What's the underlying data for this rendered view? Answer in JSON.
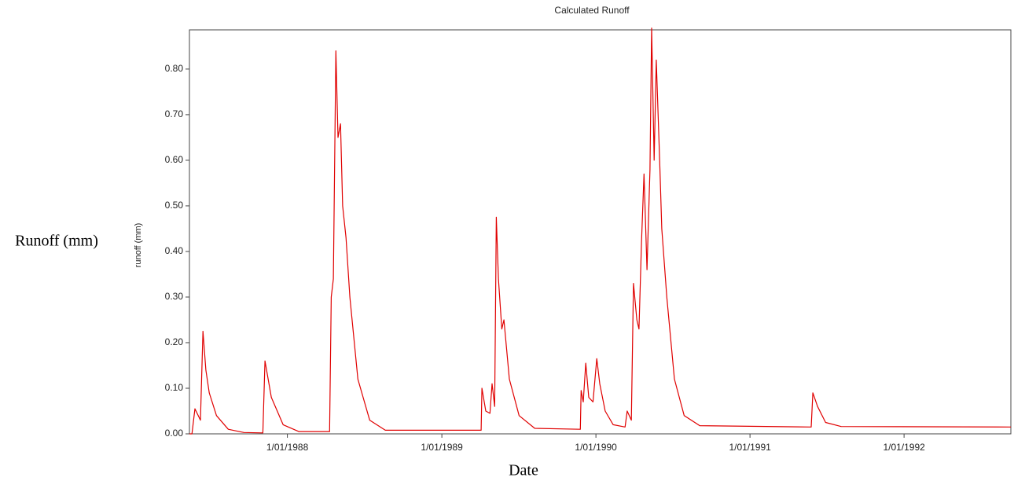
{
  "chart_data": {
    "type": "line",
    "title": "Calculated Runoff",
    "y_label": "runoff (mm)",
    "figure_y_label": "Runoff (mm)",
    "figure_x_label": "Date",
    "x": [
      "1987-05-14",
      "1987-05-20",
      "1987-05-27",
      "1987-06-09",
      "1987-06-15",
      "1987-06-22",
      "1987-06-30",
      "1987-07-17",
      "1987-08-14",
      "1987-09-20",
      "1987-11-04",
      "1987-11-09",
      "1987-11-24",
      "1987-12-22",
      "1988-01-28",
      "1988-04-10",
      "1988-04-14",
      "1988-04-19",
      "1988-04-25",
      "1988-04-30",
      "1988-05-06",
      "1988-05-11",
      "1988-05-19",
      "1988-05-28",
      "1988-06-16",
      "1988-07-14",
      "1988-08-20",
      "1989-04-04",
      "1989-04-06",
      "1989-04-15",
      "1989-04-25",
      "1989-04-30",
      "1989-05-06",
      "1989-05-10",
      "1989-05-15",
      "1989-05-23",
      "1989-05-28",
      "1989-06-10",
      "1989-07-03",
      "1989-08-09",
      "1989-11-25",
      "1989-11-27",
      "1989-12-02",
      "1989-12-08",
      "1989-12-15",
      "1989-12-25",
      "1990-01-03",
      "1990-01-10",
      "1990-01-23",
      "1990-02-11",
      "1990-03-11",
      "1990-03-16",
      "1990-03-26",
      "1990-03-31",
      "1990-04-08",
      "1990-04-13",
      "1990-04-19",
      "1990-04-25",
      "1990-05-02",
      "1990-05-09",
      "1990-05-13",
      "1990-05-19",
      "1990-05-24",
      "1990-06-01",
      "1990-06-06",
      "1990-06-18",
      "1990-07-06",
      "1990-07-29",
      "1990-09-04",
      "1991-05-26",
      "1991-05-30",
      "1991-06-10",
      "1991-06-29",
      "1991-08-05",
      "1992-09-10"
    ],
    "series": [
      {
        "name": "runoff",
        "color": "#e00000",
        "values": [
          0,
          0,
          0.055,
          0.03,
          0.225,
          0.14,
          0.09,
          0.04,
          0.01,
          0.003,
          0.002,
          0.16,
          0.08,
          0.02,
          0.005,
          0.005,
          0.3,
          0.34,
          0.84,
          0.65,
          0.68,
          0.5,
          0.43,
          0.3,
          0.12,
          0.03,
          0.008,
          0.008,
          0.1,
          0.05,
          0.045,
          0.11,
          0.06,
          0.475,
          0.34,
          0.23,
          0.25,
          0.12,
          0.04,
          0.012,
          0.01,
          0.095,
          0.07,
          0.155,
          0.08,
          0.07,
          0.165,
          0.11,
          0.05,
          0.02,
          0.015,
          0.05,
          0.03,
          0.33,
          0.25,
          0.23,
          0.42,
          0.57,
          0.36,
          0.58,
          0.89,
          0.6,
          0.82,
          0.6,
          0.45,
          0.3,
          0.12,
          0.04,
          0.018,
          0.015,
          0.09,
          0.06,
          0.025,
          0.016,
          0.015
        ]
      }
    ],
    "xlim": [
      "1987-05-14",
      "1992-09-10"
    ],
    "xticks": [
      {
        "value": "1988-01-01",
        "label": "1/01/1988"
      },
      {
        "value": "1989-01-01",
        "label": "1/01/1989"
      },
      {
        "value": "1990-01-01",
        "label": "1/01/1990"
      },
      {
        "value": "1991-01-01",
        "label": "1/01/1991"
      },
      {
        "value": "1992-01-01",
        "label": "1/01/1992"
      }
    ],
    "ylim": [
      0,
      0.886
    ],
    "yticks": [
      {
        "value": 0,
        "label": "0.00"
      },
      {
        "value": 0.1,
        "label": "0.10"
      },
      {
        "value": 0.2,
        "label": "0.20"
      },
      {
        "value": 0.3,
        "label": "0.30"
      },
      {
        "value": 0.4,
        "label": "0.40"
      },
      {
        "value": 0.5,
        "label": "0.50"
      },
      {
        "value": 0.6,
        "label": "0.60"
      },
      {
        "value": 0.7,
        "label": "0.70"
      },
      {
        "value": 0.8,
        "label": "0.80"
      }
    ],
    "grid": false
  }
}
